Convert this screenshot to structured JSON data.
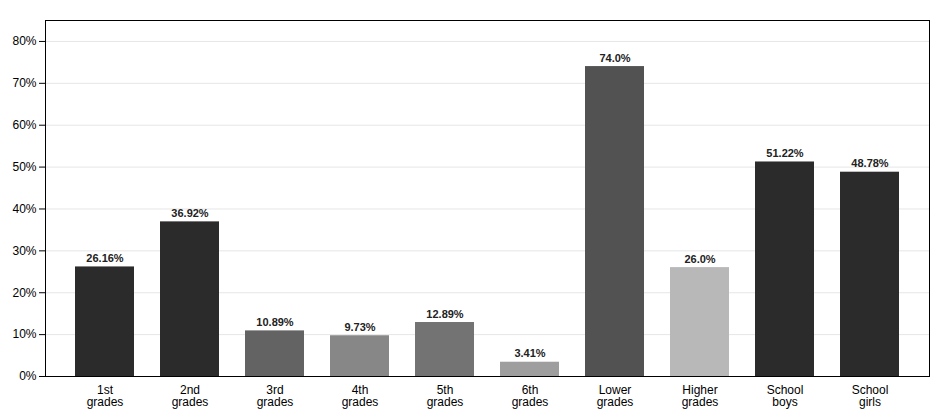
{
  "chart_data": {
    "type": "bar",
    "categories": [
      "1st\ngrades",
      "2nd\ngrades",
      "3rd\ngrades",
      "4th\ngrades",
      "5th\ngrades",
      "6th\ngrades",
      "Lower\ngrades",
      "Higher\ngrades",
      "School\nboys",
      "School\ngirls"
    ],
    "values": [
      26.16,
      36.92,
      10.89,
      9.73,
      12.89,
      3.41,
      74.0,
      26.0,
      51.22,
      48.78
    ],
    "value_labels": [
      "26.16%",
      "36.92%",
      "10.89%",
      "9.73%",
      "12.89%",
      "3.41%",
      "74.0%",
      "26.0%",
      "51.22%",
      "48.78%"
    ],
    "colors": [
      "#2b2b2b",
      "#2b2b2b",
      "#636363",
      "#878787",
      "#737373",
      "#9e9e9e",
      "#525252",
      "#b8b8b8",
      "#2b2b2b",
      "#2b2b2b"
    ],
    "ylim": [
      0,
      85
    ],
    "yticks": [
      {
        "value": 0,
        "label": "0%"
      },
      {
        "value": 10,
        "label": "10%"
      },
      {
        "value": 20,
        "label": "20%"
      },
      {
        "value": 30,
        "label": "30%"
      },
      {
        "value": 40,
        "label": "40%"
      },
      {
        "value": 50,
        "label": "50%"
      },
      {
        "value": 60,
        "label": "60%"
      },
      {
        "value": 70,
        "label": "70%"
      },
      {
        "value": 80,
        "label": "80%"
      }
    ],
    "grid": true,
    "data_labels": true
  }
}
